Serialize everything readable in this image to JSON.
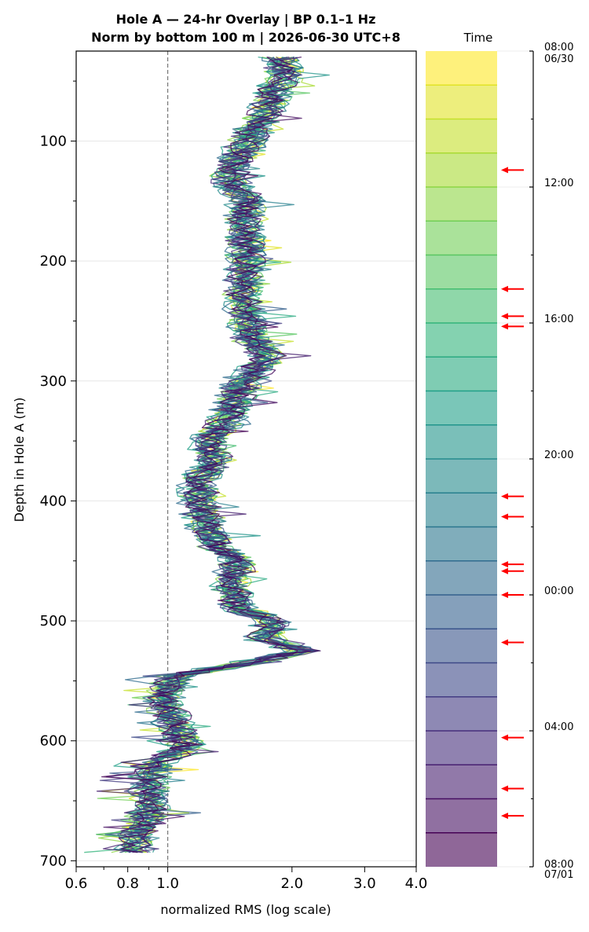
{
  "chart_data": {
    "type": "line",
    "title_lines": [
      "Hole A — 24-hr Overlay  |  BP 0.1–1 Hz",
      "Norm by bottom 100 m  |  2026-06-30 UTC+8"
    ],
    "xlabel": "normalized RMS  (log scale)",
    "ylabel": "Depth in Hole A (m)",
    "x_scale": "log",
    "xlim": [
      0.6,
      4.0
    ],
    "ylim": [
      705,
      25
    ],
    "x_ticks": [
      "0.6",
      "0.8",
      "1.0",
      "2.0",
      "3.0",
      "4.0"
    ],
    "y_ticks": [
      "100",
      "200",
      "300",
      "400",
      "500",
      "600",
      "700"
    ],
    "reference_line_x": 1.0,
    "grid": "horizontal",
    "colormap": "viridis",
    "colorbar": {
      "title": "Time",
      "levels": 24,
      "ticks": [
        {
          "label": "08:00",
          "sub": "06/30"
        },
        {
          "label": "12:00",
          "sub": ""
        },
        {
          "label": "16:00",
          "sub": ""
        },
        {
          "label": "20:00",
          "sub": ""
        },
        {
          "label": "00:00",
          "sub": ""
        },
        {
          "label": "04:00",
          "sub": ""
        },
        {
          "label": "08:00",
          "sub": "07/01"
        }
      ],
      "arrow_hours": [
        3.5,
        7,
        7.8,
        8.1,
        13.1,
        13.7,
        15.1,
        15.3,
        16.0,
        17.4,
        20.2,
        21.7,
        22.5
      ],
      "arrow_color": "#ff0000"
    },
    "profile_anchors": {
      "depth": [
        30,
        45,
        60,
        75,
        90,
        100,
        110,
        120,
        130,
        140,
        150,
        170,
        190,
        210,
        230,
        250,
        265,
        280,
        300,
        330,
        350,
        365,
        385,
        405,
        420,
        440,
        450,
        470,
        490,
        500,
        515,
        525,
        535,
        545,
        560,
        575,
        590,
        605,
        620,
        640,
        660,
        675,
        690
      ],
      "rms": [
        1.88,
        1.92,
        1.8,
        1.72,
        1.62,
        1.56,
        1.48,
        1.44,
        1.38,
        1.46,
        1.56,
        1.52,
        1.54,
        1.54,
        1.52,
        1.55,
        1.58,
        1.75,
        1.52,
        1.4,
        1.25,
        1.28,
        1.18,
        1.2,
        1.24,
        1.32,
        1.48,
        1.42,
        1.48,
        1.8,
        1.7,
        2.1,
        1.55,
        1.05,
        0.98,
        1.0,
        1.05,
        1.1,
        0.92,
        0.9,
        0.92,
        0.85,
        0.82
      ]
    },
    "series_count": 24
  }
}
